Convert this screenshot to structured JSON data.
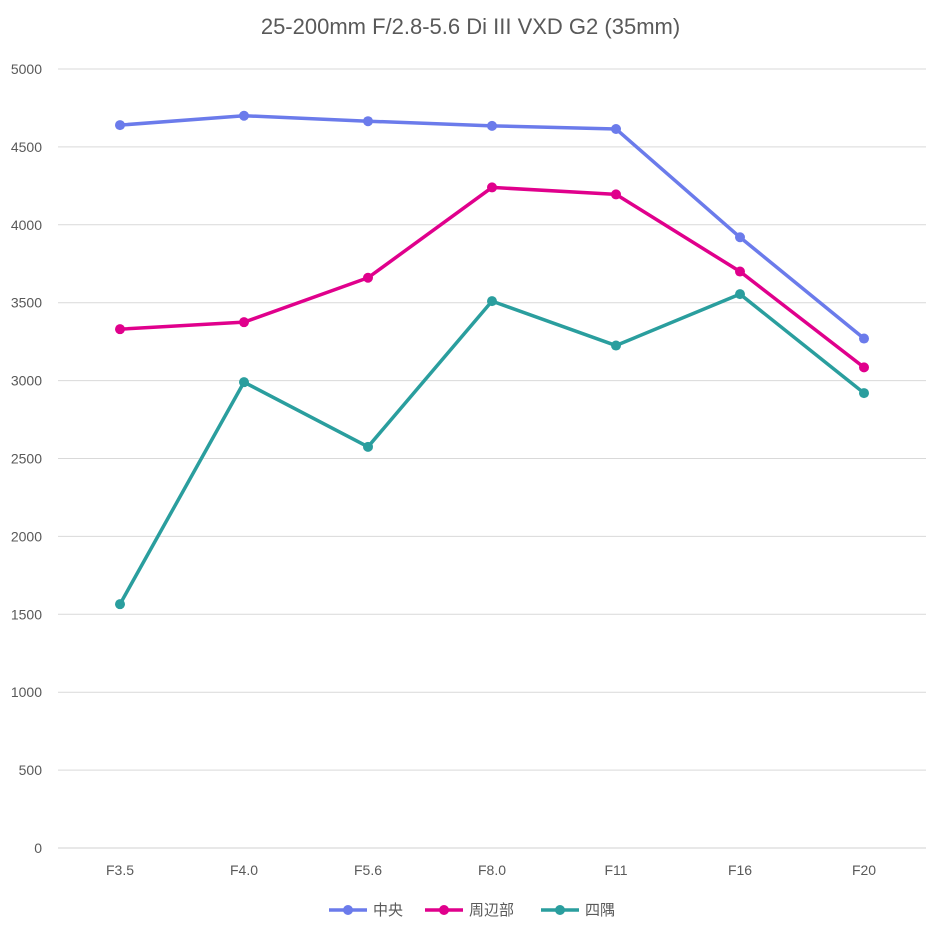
{
  "chart_data": {
    "type": "line",
    "title": "25-200mm F/2.8-5.6 Di III VXD G2 (35mm)",
    "xlabel": "",
    "ylabel": "",
    "categories": [
      "F3.5",
      "F4.0",
      "F5.6",
      "F8.0",
      "F11",
      "F16",
      "F20"
    ],
    "ylim": [
      0,
      5000
    ],
    "yticks": [
      0,
      500,
      1000,
      1500,
      2000,
      2500,
      3000,
      3500,
      4000,
      4500,
      5000
    ],
    "grid": true,
    "legend_position": "bottom",
    "series": [
      {
        "name": "中央",
        "color": "#6B7BEB",
        "values": [
          4640,
          4700,
          4665,
          4635,
          4615,
          3920,
          3270
        ]
      },
      {
        "name": "周辺部",
        "color": "#E0008C",
        "values": [
          3330,
          3375,
          3660,
          4240,
          4195,
          3700,
          3085
        ]
      },
      {
        "name": "四隅",
        "color": "#2A9E9E",
        "values": [
          1565,
          2990,
          2575,
          3510,
          3225,
          3555,
          2920
        ]
      }
    ]
  }
}
